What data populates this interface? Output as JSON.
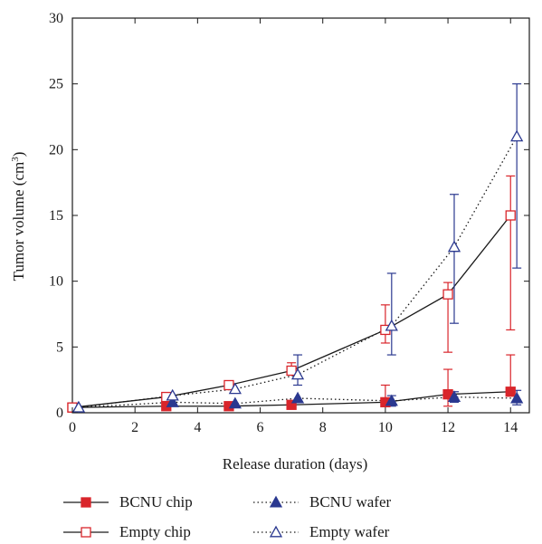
{
  "chart_data": {
    "type": "line",
    "xlabel": "Release duration (days)",
    "ylabel": {
      "base": "Tumor volume (cm",
      "sup": "3",
      "tail": ")"
    },
    "xlim": [
      0,
      14.6
    ],
    "ylim": [
      0,
      30
    ],
    "xticks": [
      0,
      2,
      4,
      6,
      8,
      10,
      12,
      14
    ],
    "yticks": [
      0,
      5,
      10,
      15,
      20,
      25,
      30
    ],
    "legend_position": "bottom",
    "series": [
      {
        "name": "BCNU chip",
        "line": "solid",
        "marker": "square-filled",
        "color": "#d9252b",
        "x": [
          0,
          3,
          5,
          7,
          10,
          12,
          14
        ],
        "y": [
          0.4,
          0.5,
          0.5,
          0.6,
          0.8,
          1.4,
          1.6
        ],
        "err_up": [
          0,
          0,
          0.3,
          0.3,
          1.3,
          1.9,
          2.8
        ],
        "err_down": [
          0,
          0,
          0,
          0,
          0,
          0.9,
          0
        ]
      },
      {
        "name": "Empty chip",
        "line": "solid",
        "marker": "square-open",
        "color": "#d9252b",
        "x": [
          0,
          3,
          5,
          7,
          10,
          12,
          14
        ],
        "y": [
          0.4,
          1.2,
          2.1,
          3.2,
          6.3,
          9.0,
          15.0
        ],
        "err_up": [
          0,
          0,
          0,
          0.6,
          1.9,
          0.9,
          3.0
        ],
        "err_down": [
          0,
          0,
          0,
          0,
          1.0,
          4.4,
          8.7
        ]
      },
      {
        "name": "BCNU wafer",
        "line": "dotted",
        "marker": "triangle-filled",
        "color": "#2b3990",
        "x": [
          0.2,
          3.2,
          5.2,
          7.2,
          10.2,
          12.2,
          14.2
        ],
        "y": [
          0.4,
          0.8,
          0.7,
          1.1,
          0.9,
          1.2,
          1.1
        ],
        "err_up": [
          0,
          0,
          0,
          0,
          0.4,
          0.4,
          0.6
        ],
        "err_down": [
          0,
          0,
          0,
          0,
          0.4,
          0.4,
          0.5
        ]
      },
      {
        "name": "Empty wafer",
        "line": "dotted",
        "marker": "triangle-open",
        "color": "#2b3990",
        "x": [
          0.2,
          3.2,
          5.2,
          7.2,
          10.2,
          12.2,
          14.2
        ],
        "y": [
          0.4,
          1.3,
          1.8,
          2.9,
          6.6,
          12.6,
          21.0
        ],
        "err_up": [
          0,
          0,
          0,
          1.5,
          4.0,
          4.0,
          4.0
        ],
        "err_down": [
          0,
          0,
          0,
          0.8,
          2.2,
          5.8,
          10.0
        ]
      }
    ]
  }
}
